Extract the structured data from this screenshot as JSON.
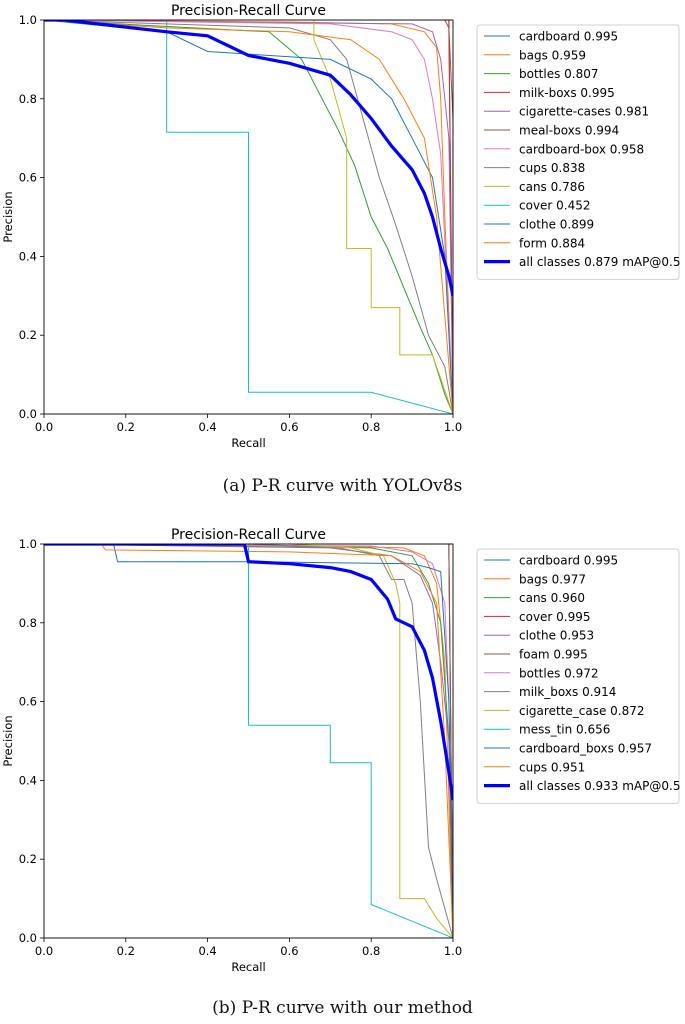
{
  "chart_data": [
    {
      "type": "line",
      "title": "Precision-Recall Curve",
      "xlabel": "Recall",
      "ylabel": "Precision",
      "xlim": [
        0,
        1
      ],
      "ylim": [
        0,
        1
      ],
      "xticks": [
        "0.0",
        "0.2",
        "0.4",
        "0.6",
        "0.8",
        "1.0"
      ],
      "yticks": [
        "0.0",
        "0.2",
        "0.4",
        "0.6",
        "0.8",
        "1.0"
      ],
      "legend_position": "outside-right",
      "caption": "(a) P-R curve with YOLOv8s",
      "series": [
        {
          "name": "cardboard 0.995",
          "color": "#1f77b4",
          "width": 1,
          "x": [
            0,
            0.99,
            0.99,
            1.0
          ],
          "y": [
            1,
            1,
            0.98,
            0
          ]
        },
        {
          "name": "bags 0.959",
          "color": "#ff7f0e",
          "width": 1,
          "x": [
            0,
            0.6,
            0.85,
            0.93,
            0.96,
            0.97,
            0.98,
            1.0
          ],
          "y": [
            1,
            0.995,
            0.99,
            0.97,
            0.93,
            0.8,
            0.5,
            0
          ]
        },
        {
          "name": "bottles 0.807",
          "color": "#2ca02c",
          "width": 1,
          "x": [
            0,
            0.55,
            0.63,
            0.68,
            0.72,
            0.76,
            0.8,
            0.84,
            0.88,
            0.92,
            0.95,
            0.98,
            1.0
          ],
          "y": [
            1,
            0.97,
            0.9,
            0.8,
            0.72,
            0.63,
            0.5,
            0.42,
            0.32,
            0.22,
            0.15,
            0.05,
            0
          ]
        },
        {
          "name": "milk-boxs 0.995",
          "color": "#d62728",
          "width": 1,
          "x": [
            0,
            0.99,
            0.99,
            1.0
          ],
          "y": [
            1,
            1,
            0.97,
            0
          ]
        },
        {
          "name": "cigarette-cases 0.981",
          "color": "#9467bd",
          "width": 1,
          "x": [
            0,
            0.9,
            0.95,
            0.97,
            0.99,
            1.0
          ],
          "y": [
            1,
            0.99,
            0.97,
            0.9,
            0.7,
            0
          ]
        },
        {
          "name": "meal-boxs 0.994",
          "color": "#8c564b",
          "width": 1,
          "x": [
            0,
            0.98,
            0.99,
            1.0,
            1.0
          ],
          "y": [
            1,
            1,
            0.98,
            0.75,
            0
          ]
        },
        {
          "name": "cardboard-box 0.958",
          "color": "#e377c2",
          "width": 1,
          "x": [
            0,
            0.7,
            0.85,
            0.9,
            0.93,
            0.95,
            0.97,
            1.0
          ],
          "y": [
            1,
            0.99,
            0.97,
            0.95,
            0.9,
            0.8,
            0.66,
            0
          ]
        },
        {
          "name": "cups 0.838",
          "color": "#7f7f7f",
          "width": 1,
          "x": [
            0,
            0.6,
            0.7,
            0.74,
            0.78,
            0.82,
            0.86,
            0.9,
            0.94,
            0.98,
            1.0
          ],
          "y": [
            1,
            0.98,
            0.95,
            0.9,
            0.75,
            0.6,
            0.48,
            0.35,
            0.2,
            0.12,
            0
          ]
        },
        {
          "name": "cans 0.786",
          "color": "#bcbd22",
          "width": 1,
          "x": [
            0,
            0.66,
            0.66,
            0.7,
            0.74,
            0.74,
            0.8,
            0.8,
            0.87,
            0.87,
            0.95,
            1.0
          ],
          "y": [
            1,
            1,
            0.95,
            0.85,
            0.7,
            0.42,
            0.42,
            0.27,
            0.27,
            0.15,
            0.15,
            0
          ]
        },
        {
          "name": "cover 0.452",
          "color": "#17becf",
          "width": 1,
          "x": [
            0,
            0.3,
            0.3,
            0.5,
            0.5,
            0.8,
            1.0
          ],
          "y": [
            1,
            1,
            0.715,
            0.715,
            0.055,
            0.055,
            0
          ]
        },
        {
          "name": "clothe 0.899",
          "color": "#1f77b4",
          "width": 1,
          "x": [
            0,
            0.3,
            0.4,
            0.7,
            0.8,
            0.85,
            0.9,
            0.95,
            0.98,
            1.0
          ],
          "y": [
            1,
            0.97,
            0.92,
            0.9,
            0.85,
            0.8,
            0.7,
            0.6,
            0.4,
            0
          ]
        },
        {
          "name": "form 0.884",
          "color": "#ff7f0e",
          "width": 1,
          "x": [
            0,
            0.3,
            0.6,
            0.75,
            0.82,
            0.88,
            0.93,
            0.96,
            0.98,
            1.0
          ],
          "y": [
            1,
            0.98,
            0.97,
            0.95,
            0.9,
            0.8,
            0.7,
            0.5,
            0.25,
            0
          ]
        },
        {
          "name": "all classes 0.879 mAP@0.5",
          "color": "#0000ff",
          "width": 3.2,
          "x": [
            0,
            0.05,
            0.3,
            0.4,
            0.5,
            0.6,
            0.7,
            0.75,
            0.8,
            0.85,
            0.9,
            0.93,
            0.95,
            0.97,
            0.99,
            1.0
          ],
          "y": [
            1,
            1,
            0.97,
            0.96,
            0.91,
            0.89,
            0.86,
            0.81,
            0.75,
            0.68,
            0.62,
            0.56,
            0.5,
            0.42,
            0.35,
            0.3
          ]
        }
      ]
    },
    {
      "type": "line",
      "title": "Precision-Recall Curve",
      "xlabel": "Recall",
      "ylabel": "Precision",
      "xlim": [
        0,
        1
      ],
      "ylim": [
        0,
        1
      ],
      "xticks": [
        "0.0",
        "0.2",
        "0.4",
        "0.6",
        "0.8",
        "1.0"
      ],
      "yticks": [
        "0.0",
        "0.2",
        "0.4",
        "0.6",
        "0.8",
        "1.0"
      ],
      "legend_position": "outside-right",
      "caption": "(b) P-R curve with our method",
      "series": [
        {
          "name": "cardboard 0.995",
          "color": "#1f77b4",
          "width": 1,
          "x": [
            0,
            0.99,
            0.99,
            1.0
          ],
          "y": [
            1,
            1,
            0.97,
            0
          ]
        },
        {
          "name": "bags 0.977",
          "color": "#ff7f0e",
          "width": 1,
          "x": [
            0,
            0.7,
            0.88,
            0.93,
            0.96,
            0.98,
            1.0
          ],
          "y": [
            1,
            0.995,
            0.99,
            0.97,
            0.9,
            0.7,
            0
          ]
        },
        {
          "name": "cans 0.960",
          "color": "#2ca02c",
          "width": 1,
          "x": [
            0,
            0.8,
            0.9,
            0.94,
            0.97,
            0.99,
            1.0
          ],
          "y": [
            1,
            0.99,
            0.97,
            0.9,
            0.8,
            0.5,
            0
          ]
        },
        {
          "name": "cover 0.995",
          "color": "#d62728",
          "width": 1,
          "x": [
            0,
            0.99,
            0.99,
            1.0
          ],
          "y": [
            1,
            1,
            0.97,
            0
          ]
        },
        {
          "name": "clothe 0.953",
          "color": "#9467bd",
          "width": 1,
          "x": [
            0,
            0.7,
            0.85,
            0.92,
            0.95,
            0.97,
            0.99,
            1.0
          ],
          "y": [
            1,
            0.99,
            0.97,
            0.92,
            0.85,
            0.7,
            0.5,
            0
          ]
        },
        {
          "name": "foam 0.995",
          "color": "#8c564b",
          "width": 1,
          "x": [
            0,
            0.99,
            0.99,
            1.0
          ],
          "y": [
            1,
            1,
            0.98,
            0
          ]
        },
        {
          "name": "bottles 0.972",
          "color": "#e377c2",
          "width": 1,
          "x": [
            0,
            0.8,
            0.9,
            0.95,
            0.98,
            0.99,
            1.0
          ],
          "y": [
            1,
            0.995,
            0.98,
            0.95,
            0.85,
            0.6,
            0
          ]
        },
        {
          "name": "milk_boxs 0.914",
          "color": "#7f7f7f",
          "width": 1,
          "x": [
            0,
            0.5,
            0.72,
            0.82,
            0.85,
            0.88,
            0.9,
            0.92,
            0.94,
            0.96,
            1.0
          ],
          "y": [
            1,
            1,
            0.99,
            0.97,
            0.91,
            0.91,
            0.85,
            0.6,
            0.23,
            0.15,
            0
          ]
        },
        {
          "name": "cigarette_case 0.872",
          "color": "#bcbd22",
          "width": 1,
          "x": [
            0,
            0.6,
            0.75,
            0.83,
            0.86,
            0.87,
            0.87,
            0.93,
            0.96,
            1.0
          ],
          "y": [
            1,
            1,
            0.99,
            0.97,
            0.9,
            0.85,
            0.1,
            0.1,
            0.05,
            0
          ]
        },
        {
          "name": "mess_tin 0.656",
          "color": "#17becf",
          "width": 1,
          "x": [
            0,
            0.5,
            0.5,
            0.7,
            0.7,
            0.8,
            0.8,
            1.0
          ],
          "y": [
            1,
            1,
            0.54,
            0.54,
            0.445,
            0.445,
            0.085,
            0
          ]
        },
        {
          "name": "cardboard_boxs 0.957",
          "color": "#1f77b4",
          "width": 1,
          "x": [
            0,
            0.17,
            0.18,
            0.5,
            0.9,
            0.94,
            0.97,
            0.99,
            1.0
          ],
          "y": [
            1,
            1,
            0.955,
            0.955,
            0.95,
            0.94,
            0.93,
            0.6,
            0
          ]
        },
        {
          "name": "cups 0.951",
          "color": "#ff7f0e",
          "width": 1,
          "x": [
            0,
            0.14,
            0.15,
            0.6,
            0.85,
            0.92,
            0.96,
            0.98,
            1.0
          ],
          "y": [
            1,
            1,
            0.985,
            0.98,
            0.97,
            0.93,
            0.85,
            0.5,
            0
          ]
        },
        {
          "name": "all classes 0.933 mAP@0.5",
          "color": "#0000ff",
          "width": 3.2,
          "x": [
            0,
            0.49,
            0.5,
            0.6,
            0.7,
            0.75,
            0.8,
            0.84,
            0.86,
            0.9,
            0.93,
            0.95,
            0.97,
            0.99,
            1.0
          ],
          "y": [
            1,
            1,
            0.955,
            0.95,
            0.94,
            0.93,
            0.91,
            0.86,
            0.81,
            0.79,
            0.73,
            0.66,
            0.55,
            0.42,
            0.35
          ]
        }
      ]
    }
  ]
}
